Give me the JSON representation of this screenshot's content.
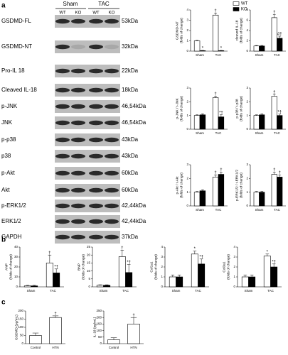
{
  "panels": [
    "a",
    "b",
    "c"
  ],
  "blot": {
    "groups": [
      "Sham",
      "TAC"
    ],
    "lanes": [
      "WT",
      "KO",
      "WT",
      "KO"
    ],
    "rows": [
      {
        "label": "GSDMD-FL",
        "size": "53kDa"
      },
      {
        "label": "GSDMD-NT",
        "size": "32kDa"
      },
      {
        "label": "Pro-IL 18",
        "size": "22kDa"
      },
      {
        "label": "Cleaved IL-18",
        "size": "18kDa"
      },
      {
        "label": "p-JNK",
        "size": "46,54kDa"
      },
      {
        "label": "JNK",
        "size": "46,54kDa"
      },
      {
        "label": "p-p38",
        "size": "43kDa"
      },
      {
        "label": "p38",
        "size": "43kDa"
      },
      {
        "label": "p-Akt",
        "size": "60kDa"
      },
      {
        "label": "Akt",
        "size": "60kDa"
      },
      {
        "label": "p-ERK1/2",
        "size": "42,44kDa"
      },
      {
        "label": "ERK1/2",
        "size": "42,44kDa"
      },
      {
        "label": "GAPDH",
        "size": "37kDa"
      }
    ]
  },
  "chart_data": [
    {
      "type": "bar",
      "ylabel": [
        "GSDMD-NT",
        "(folds of change)"
      ],
      "categories": [
        "Sham",
        "TAC"
      ],
      "legend": "upper right",
      "ylim": [
        0,
        4
      ],
      "yticks": [
        0,
        1,
        2,
        3,
        4
      ],
      "series": [
        {
          "name": "WT",
          "color": "#ffffff",
          "values": [
            1,
            3.5
          ],
          "errors": [
            0.05,
            0.2
          ],
          "annotations": [
            null,
            "†"
          ]
        },
        {
          "name": "KO",
          "color": "#000000",
          "values": [
            0.05,
            0.05
          ],
          "errors": [
            0.02,
            0.02
          ],
          "annotations": [
            "*",
            "*"
          ]
        }
      ]
    },
    {
      "type": "bar",
      "ylabel": [
        "cleaved IL-18",
        "(folds of change)"
      ],
      "categories": [
        "Sham",
        "TAC"
      ],
      "ylim": [
        0,
        8
      ],
      "yticks": [
        0,
        2,
        4,
        6,
        8
      ],
      "series": [
        {
          "name": "WT",
          "color": "#ffffff",
          "values": [
            1,
            6.5
          ],
          "errors": [
            0.1,
            0.6
          ],
          "annotations": [
            null,
            "†"
          ]
        },
        {
          "name": "KO",
          "color": "#000000",
          "values": [
            1,
            2.5
          ],
          "errors": [
            0.1,
            0.4
          ],
          "annotations": [
            null,
            "#†"
          ]
        }
      ]
    },
    {
      "type": "bar",
      "ylabel": [
        "p-JNK / t-JNK",
        "(folds of change)"
      ],
      "categories": [
        "Sham",
        "TAC"
      ],
      "ylim": [
        0,
        3
      ],
      "yticks": [
        0,
        1,
        2,
        3
      ],
      "series": [
        {
          "name": "WT",
          "color": "#ffffff",
          "values": [
            1,
            2.3
          ],
          "errors": [
            0.05,
            0.1
          ],
          "annotations": [
            null,
            "†"
          ]
        },
        {
          "name": "KO",
          "color": "#000000",
          "values": [
            1.05,
            0.9
          ],
          "errors": [
            0.08,
            0.15
          ],
          "annotations": [
            null,
            "*†"
          ]
        }
      ]
    },
    {
      "type": "bar",
      "ylabel": [
        "p-p38 / t-p38",
        "(folds of change)"
      ],
      "categories": [
        "Sham",
        "TAC"
      ],
      "ylim": [
        0,
        3
      ],
      "yticks": [
        0,
        1,
        2,
        3
      ],
      "series": [
        {
          "name": "WT",
          "color": "#ffffff",
          "values": [
            1,
            2.4
          ],
          "errors": [
            0.05,
            0.15
          ],
          "annotations": [
            null,
            "†"
          ]
        },
        {
          "name": "KO",
          "color": "#000000",
          "values": [
            1.05,
            1.0
          ],
          "errors": [
            0.08,
            0.1
          ],
          "annotations": [
            null,
            "*†"
          ]
        }
      ]
    },
    {
      "type": "bar",
      "ylabel": [
        "p-Akt / t-Akt",
        "(folds of change)"
      ],
      "categories": [
        "Sham",
        "TAC"
      ],
      "ylim": [
        0,
        3
      ],
      "yticks": [
        0,
        1,
        2,
        3
      ],
      "series": [
        {
          "name": "WT",
          "color": "#ffffff",
          "values": [
            1,
            2.1
          ],
          "errors": [
            0.05,
            0.15
          ],
          "annotations": [
            null,
            "†"
          ]
        },
        {
          "name": "KO",
          "color": "#000000",
          "values": [
            1.1,
            2.3
          ],
          "errors": [
            0.08,
            0.15
          ],
          "annotations": [
            null,
            "†"
          ]
        }
      ]
    },
    {
      "type": "bar",
      "ylabel": [
        "p-ERK1/2 / t-ERK1/2",
        "(folds of change)"
      ],
      "categories": [
        "Sham",
        "TAC"
      ],
      "ylim": [
        0,
        3
      ],
      "yticks": [
        0,
        1,
        2,
        3
      ],
      "series": [
        {
          "name": "WT",
          "color": "#ffffff",
          "values": [
            1,
            2.3
          ],
          "errors": [
            0.05,
            0.15
          ],
          "annotations": [
            null,
            "†"
          ]
        },
        {
          "name": "KO",
          "color": "#000000",
          "values": [
            1,
            2.1
          ],
          "errors": [
            0.06,
            0.15
          ],
          "annotations": [
            null,
            "†"
          ]
        }
      ]
    },
    {
      "type": "bar",
      "ylabel": [
        "ANP",
        "(folds of change)"
      ],
      "categories": [
        "Sham",
        "TAC"
      ],
      "ylim": [
        0,
        40
      ],
      "yticks": [
        0,
        10,
        20,
        30,
        40
      ],
      "series": [
        {
          "name": "WT",
          "color": "#ffffff",
          "values": [
            1,
            24
          ],
          "errors": [
            0.5,
            8
          ],
          "annotations": [
            null,
            "†"
          ]
        },
        {
          "name": "KO",
          "color": "#000000",
          "values": [
            1,
            14
          ],
          "errors": [
            0.5,
            4
          ],
          "annotations": [
            null,
            "*†"
          ]
        }
      ]
    },
    {
      "type": "bar",
      "ylabel": [
        "BNP",
        "(folds of change)"
      ],
      "categories": [
        "Sham",
        "TAC"
      ],
      "ylim": [
        0,
        25
      ],
      "yticks": [
        0,
        5,
        10,
        15,
        20,
        25
      ],
      "series": [
        {
          "name": "WT",
          "color": "#ffffff",
          "values": [
            1,
            19
          ],
          "errors": [
            0.3,
            4
          ],
          "annotations": [
            null,
            "†"
          ]
        },
        {
          "name": "KO",
          "color": "#000000",
          "values": [
            1,
            9
          ],
          "errors": [
            0.3,
            5
          ],
          "annotations": [
            null,
            "*†"
          ]
        }
      ]
    },
    {
      "type": "bar",
      "ylabel": [
        "Col1a1",
        "(folds of change)"
      ],
      "categories": [
        "Sham",
        "TAC"
      ],
      "ylim": [
        0,
        4
      ],
      "yticks": [
        0,
        1,
        2,
        3,
        4
      ],
      "series": [
        {
          "name": "WT",
          "color": "#ffffff",
          "values": [
            1,
            3.3
          ],
          "errors": [
            0.2,
            0.3
          ],
          "annotations": [
            null,
            "*"
          ]
        },
        {
          "name": "KO",
          "color": "#000000",
          "values": [
            1,
            2.3
          ],
          "errors": [
            0.2,
            0.5
          ],
          "annotations": [
            null,
            "*†"
          ]
        }
      ]
    },
    {
      "type": "bar",
      "ylabel": [
        "Col3a1",
        "(folds of change)"
      ],
      "categories": [
        "Sham",
        "TAC"
      ],
      "ylim": [
        0,
        4
      ],
      "yticks": [
        0,
        1,
        2,
        3,
        4
      ],
      "series": [
        {
          "name": "WT",
          "color": "#ffffff",
          "values": [
            1,
            3.1
          ],
          "errors": [
            0.2,
            0.2
          ],
          "annotations": [
            null,
            "*"
          ]
        },
        {
          "name": "KO",
          "color": "#000000",
          "values": [
            1,
            2.0
          ],
          "errors": [
            0.2,
            0.3
          ],
          "annotations": [
            null,
            "*†"
          ]
        }
      ]
    },
    {
      "type": "bar",
      "ylabel": [
        "GSDMD (pg/mL)"
      ],
      "categories": [
        "Control",
        "HTN"
      ],
      "color": "#ffffff",
      "ylim": [
        0,
        200
      ],
      "yticks": [
        0,
        50,
        100,
        150,
        200
      ],
      "values": [
        50,
        160
      ],
      "errors": [
        15,
        10
      ],
      "annotations": [
        null,
        "†"
      ]
    },
    {
      "type": "bar",
      "ylabel": [
        "IL-18 (pg/mL)"
      ],
      "categories": [
        "Control",
        "HTN"
      ],
      "color": "#ffffff",
      "ylim": [
        0,
        250
      ],
      "yticks": [
        0,
        50,
        100,
        150,
        200,
        250
      ],
      "values": [
        30,
        150
      ],
      "errors": [
        15,
        50
      ],
      "annotations": [
        null,
        "†"
      ]
    }
  ]
}
